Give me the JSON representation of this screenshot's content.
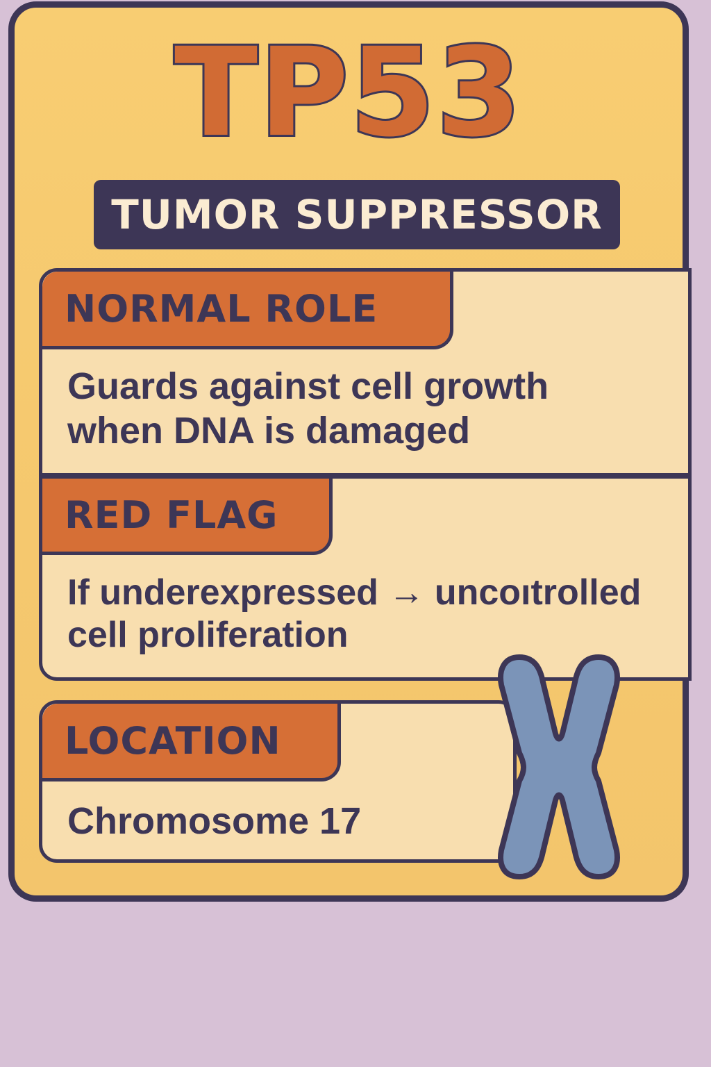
{
  "card": {
    "title": "TP53",
    "subtitle": "TUMOR SUPPRESSOR"
  },
  "sections": {
    "normal_role": {
      "heading": "NORMAL ROLE",
      "line1": "Guards against cell growth",
      "line2": "when DNA is damaged"
    },
    "red_flag": {
      "heading": "RED FLAG",
      "line1": "If underexpressed → uncoıtrolled",
      "line2": "cell proliferation"
    },
    "location": {
      "heading": "LOCATION",
      "text": "Chromosome 17"
    }
  },
  "icons": {
    "chromosome": "chromosome-icon"
  },
  "colors": {
    "background": "#d7c1d6",
    "card": "#f8cd72",
    "outline": "#3d3656",
    "accent": "#d16b34",
    "panel": "#f8deaf",
    "chromosome": "#7b94b8"
  }
}
